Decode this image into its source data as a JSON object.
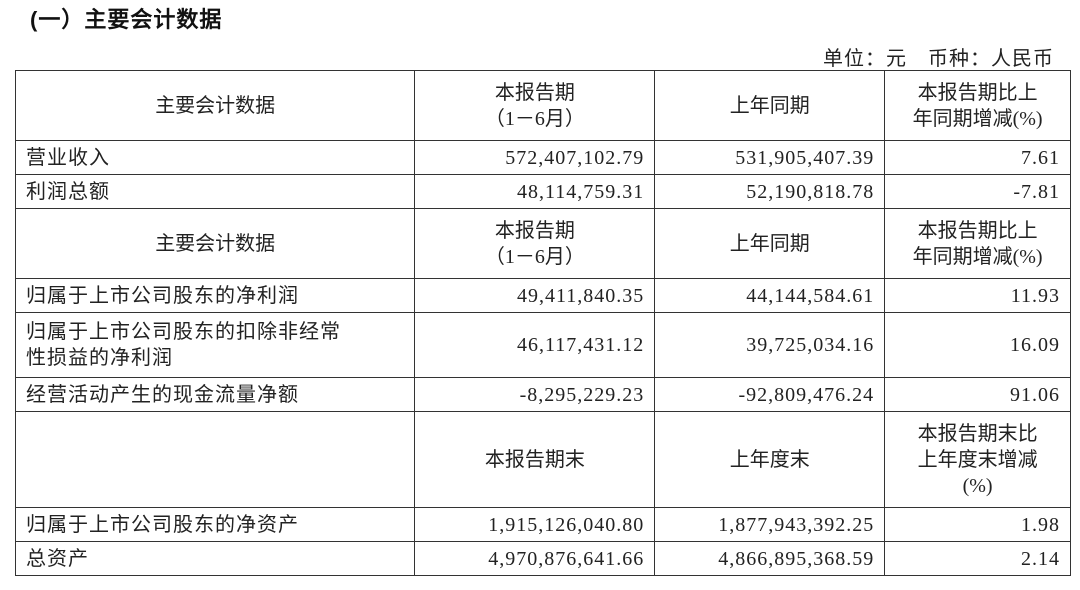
{
  "section_title": "(一）主要会计数据",
  "unit_note": "单位：元　币种：人民币",
  "blocks": [
    {
      "header": {
        "item": "主要会计数据",
        "current": [
          "本报告期",
          "（1－6月）"
        ],
        "prior": [
          "上年同期"
        ],
        "change": [
          "本报告期比上",
          "年同期增减(%)"
        ]
      },
      "rows": [
        {
          "item": "营业收入",
          "current": "572,407,102.79",
          "prior": "531,905,407.39",
          "change": "7.61"
        },
        {
          "item": "利润总额",
          "current": "48,114,759.31",
          "prior": "52,190,818.78",
          "change": "-7.81"
        }
      ]
    },
    {
      "header": {
        "item": "主要会计数据",
        "current": [
          "本报告期",
          "（1－6月）"
        ],
        "prior": [
          "上年同期"
        ],
        "change": [
          "本报告期比上",
          "年同期增减(%)"
        ]
      },
      "rows": [
        {
          "item": "归属于上市公司股东的净利润",
          "current": "49,411,840.35",
          "prior": "44,144,584.61",
          "change": "11.93"
        },
        {
          "item": "归属于上市公司股东的扣除非经常性损益的净利润",
          "item_lines": [
            "归属于上市公司股东的扣除非经常",
            "性损益的净利润"
          ],
          "current": "46,117,431.12",
          "prior": "39,725,034.16",
          "change": "16.09"
        },
        {
          "item": "经营活动产生的现金流量净额",
          "current": "-8,295,229.23",
          "prior": "-92,809,476.24",
          "change": "91.06"
        }
      ]
    },
    {
      "header": {
        "item": "",
        "current": [
          "本报告期末"
        ],
        "prior": [
          "上年度末"
        ],
        "change": [
          "本报告期末比",
          "上年度末增减",
          "(%)"
        ]
      },
      "rows": [
        {
          "item": "归属于上市公司股东的净资产",
          "current": "1,915,126,040.80",
          "prior": "1,877,943,392.25",
          "change": "1.98"
        },
        {
          "item": "总资产",
          "current": "4,970,876,641.66",
          "prior": "4,866,895,368.59",
          "change": "2.14"
        }
      ]
    }
  ]
}
